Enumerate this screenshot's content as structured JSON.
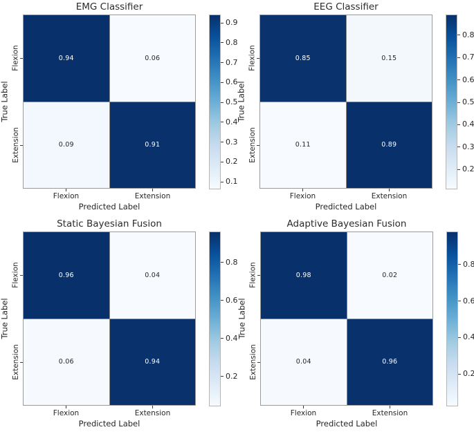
{
  "figure": {
    "background": "#ffffff",
    "text_color": "#262626"
  },
  "style": {
    "colormap_name": "Blues",
    "colormap_stops_dark_to_light": [
      "#08306b",
      "#08519c",
      "#2171b5",
      "#4292c6",
      "#6baed6",
      "#9ecae1",
      "#c6dbef",
      "#deebf7",
      "#f7fbff"
    ],
    "cell_dark": "#08306b",
    "cell_light": "#f7fbff",
    "grid_line": "#8a8a8a"
  },
  "chart_data": [
    {
      "type": "heatmap",
      "title": "EMG Classifier",
      "xlabel": "Predicted Label",
      "ylabel": "True Label",
      "x_tick_labels": [
        "Flexion",
        "Extension"
      ],
      "y_tick_labels": [
        "Flexion",
        "Extension"
      ],
      "matrix": [
        [
          0.94,
          0.06
        ],
        [
          0.09,
          0.91
        ]
      ],
      "vmin": 0.06,
      "vmax": 0.94,
      "colorbar_ticks": [
        0.9,
        0.8,
        0.7,
        0.6,
        0.5,
        0.4,
        0.3,
        0.2,
        0.1
      ],
      "cells": [
        {
          "label": "0.94",
          "bg": "#08306b",
          "fg": "#ffffff"
        },
        {
          "label": "0.06",
          "bg": "#f7fbff",
          "fg": "#262626"
        },
        {
          "label": "0.09",
          "bg": "#f2f8fd",
          "fg": "#262626"
        },
        {
          "label": "0.91",
          "bg": "#09316c",
          "fg": "#ffffff"
        }
      ]
    },
    {
      "type": "heatmap",
      "title": "EEG Classifier",
      "xlabel": "Predicted Label",
      "ylabel": "True Label",
      "x_tick_labels": [
        "Flexion",
        "Extension"
      ],
      "y_tick_labels": [
        "Flexion",
        "Extension"
      ],
      "matrix": [
        [
          0.85,
          0.15
        ],
        [
          0.11,
          0.89
        ]
      ],
      "vmin": 0.11,
      "vmax": 0.89,
      "colorbar_ticks": [
        0.8,
        0.7,
        0.6,
        0.5,
        0.4,
        0.3,
        0.2
      ],
      "cells": [
        {
          "label": "0.85",
          "bg": "#0a336e",
          "fg": "#ffffff"
        },
        {
          "label": "0.15",
          "bg": "#f3f8fd",
          "fg": "#262626"
        },
        {
          "label": "0.11",
          "bg": "#f7fbff",
          "fg": "#262626"
        },
        {
          "label": "0.89",
          "bg": "#08306b",
          "fg": "#ffffff"
        }
      ]
    },
    {
      "type": "heatmap",
      "title": "Static Bayesian Fusion",
      "xlabel": "Predicted Label",
      "ylabel": "True Label",
      "x_tick_labels": [
        "Flexion",
        "Extension"
      ],
      "y_tick_labels": [
        "Flexion",
        "Extension"
      ],
      "matrix": [
        [
          0.96,
          0.04
        ],
        [
          0.06,
          0.94
        ]
      ],
      "vmin": 0.04,
      "vmax": 0.96,
      "colorbar_ticks": [
        0.8,
        0.6,
        0.4,
        0.2
      ],
      "cells": [
        {
          "label": "0.96",
          "bg": "#08306b",
          "fg": "#ffffff"
        },
        {
          "label": "0.04",
          "bg": "#f7fbff",
          "fg": "#262626"
        },
        {
          "label": "0.06",
          "bg": "#f6fafe",
          "fg": "#262626"
        },
        {
          "label": "0.94",
          "bg": "#09316c",
          "fg": "#ffffff"
        }
      ]
    },
    {
      "type": "heatmap",
      "title": "Adaptive Bayesian Fusion",
      "xlabel": "Predicted Label",
      "ylabel": "True Label",
      "x_tick_labels": [
        "Flexion",
        "Extension"
      ],
      "y_tick_labels": [
        "Flexion",
        "Extension"
      ],
      "matrix": [
        [
          0.98,
          0.02
        ],
        [
          0.04,
          0.96
        ]
      ],
      "vmin": 0.02,
      "vmax": 0.98,
      "colorbar_ticks": [
        0.8,
        0.6,
        0.4,
        0.2
      ],
      "cells": [
        {
          "label": "0.98",
          "bg": "#08306b",
          "fg": "#ffffff"
        },
        {
          "label": "0.02",
          "bg": "#f7fbff",
          "fg": "#262626"
        },
        {
          "label": "0.04",
          "bg": "#f6fafe",
          "fg": "#262626"
        },
        {
          "label": "0.96",
          "bg": "#09316c",
          "fg": "#ffffff"
        }
      ]
    }
  ]
}
